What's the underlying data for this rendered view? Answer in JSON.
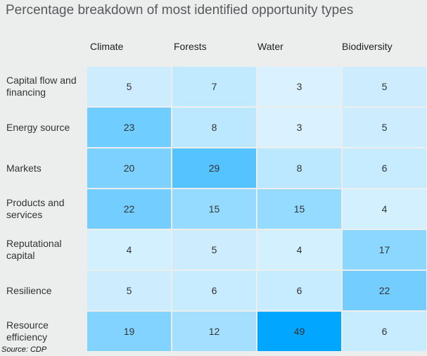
{
  "chart_data": {
    "type": "heatmap",
    "title": "Percentage breakdown of most identified opportunity types",
    "columns": [
      "Climate",
      "Forests",
      "Water",
      "Biodiversity"
    ],
    "rows": [
      "Capital flow and financing",
      "Energy source",
      "Markets",
      "Products and services",
      "Reputational capital",
      "Resilience",
      "Resource efficiency"
    ],
    "values": [
      [
        5,
        7,
        3,
        5
      ],
      [
        23,
        8,
        3,
        5
      ],
      [
        20,
        29,
        8,
        6
      ],
      [
        22,
        15,
        15,
        4
      ],
      [
        4,
        5,
        4,
        17
      ],
      [
        5,
        6,
        6,
        22
      ],
      [
        19,
        12,
        49,
        6
      ]
    ],
    "color_scale": {
      "low": "#f4fbff",
      "high": "#00a6ff"
    },
    "source": "Source: CDP"
  }
}
